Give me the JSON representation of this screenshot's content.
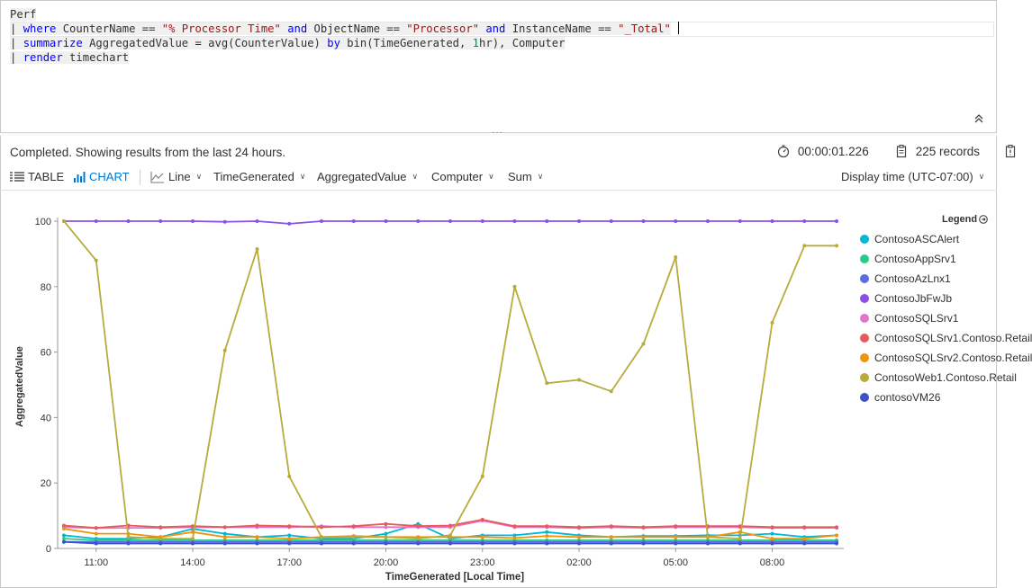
{
  "query": {
    "lines": [
      [
        {
          "t": "Perf",
          "c": "plain"
        }
      ],
      [
        {
          "t": "| ",
          "c": "plain"
        },
        {
          "t": "where",
          "c": "kw"
        },
        {
          "t": " CounterName == ",
          "c": "plain"
        },
        {
          "t": "\"% Processor Time\"",
          "c": "str"
        },
        {
          "t": " ",
          "c": "plain"
        },
        {
          "t": "and",
          "c": "kw"
        },
        {
          "t": " ObjectName == ",
          "c": "plain"
        },
        {
          "t": "\"Processor\"",
          "c": "str"
        },
        {
          "t": " ",
          "c": "plain"
        },
        {
          "t": "and",
          "c": "kw"
        },
        {
          "t": " InstanceName == ",
          "c": "plain"
        },
        {
          "t": "\"_Total\"",
          "c": "str"
        }
      ],
      [
        {
          "t": "| ",
          "c": "plain"
        },
        {
          "t": "summarize",
          "c": "kw"
        },
        {
          "t": " AggregatedValue = avg(CounterValue) ",
          "c": "plain"
        },
        {
          "t": "by",
          "c": "kw"
        },
        {
          "t": " bin(TimeGenerated, ",
          "c": "plain"
        },
        {
          "t": "1",
          "c": "num"
        },
        {
          "t": "hr), Computer",
          "c": "plain"
        }
      ],
      [
        {
          "t": "| ",
          "c": "plain"
        },
        {
          "t": "render",
          "c": "kw"
        },
        {
          "t": " timechart",
          "c": "plain"
        }
      ]
    ]
  },
  "status": {
    "message": "Completed. Showing results from the last 24 hours.",
    "duration": "00:00:01.226",
    "records": "225 records"
  },
  "toolbar": {
    "table": "TABLE",
    "chart": "CHART",
    "chart_type": "Line",
    "x_column": "TimeGenerated",
    "y_column": "AggregatedValue",
    "split_by": "Computer",
    "aggregation": "Sum",
    "display_time": "Display time (UTC-07:00)"
  },
  "legend": {
    "title": "Legend"
  },
  "chart_data": {
    "type": "line",
    "xlabel": "TimeGenerated [Local Time]",
    "ylabel": "AggregatedValue",
    "ylim": [
      0,
      100
    ],
    "yticks": [
      0,
      20,
      40,
      60,
      80,
      100
    ],
    "x": [
      "10:00",
      "11:00",
      "12:00",
      "13:00",
      "14:00",
      "15:00",
      "16:00",
      "17:00",
      "18:00",
      "19:00",
      "20:00",
      "21:00",
      "22:00",
      "23:00",
      "00:00",
      "01:00",
      "02:00",
      "03:00",
      "04:00",
      "05:00",
      "06:00",
      "07:00",
      "08:00",
      "09:00",
      "10:00"
    ],
    "xtick_labels": [
      "11:00",
      "14:00",
      "17:00",
      "20:00",
      "23:00",
      "02:00",
      "05:00",
      "08:00"
    ],
    "xtick_index": [
      1,
      4,
      7,
      10,
      13,
      16,
      19,
      22
    ],
    "series": [
      {
        "name": "ContosoASCAlert",
        "color": "#00b7d6",
        "values": [
          4,
          3,
          3,
          3.5,
          6,
          4.5,
          3.5,
          4,
          3,
          3,
          4.5,
          7.5,
          3,
          4,
          4,
          5,
          4,
          3.5,
          3.8,
          3.8,
          4,
          4,
          4.5,
          3.5,
          4
        ]
      },
      {
        "name": "ContosoAppSrv1",
        "color": "#2bcc85",
        "values": [
          3,
          2.5,
          2.5,
          2.5,
          2.5,
          2.5,
          2.5,
          2.5,
          2.5,
          2.5,
          2.5,
          2.5,
          2.5,
          2.5,
          2.5,
          2.5,
          2.5,
          2.5,
          2.5,
          2.5,
          2.5,
          2.5,
          2.5,
          2.5,
          2.5
        ]
      },
      {
        "name": "ContosoAzLnx1",
        "color": "#5b6ee1",
        "values": [
          2,
          2,
          2,
          2,
          2,
          2,
          2,
          2,
          2,
          2,
          2,
          2,
          2,
          2,
          2,
          2,
          2,
          2,
          2,
          2,
          2,
          2,
          2,
          2,
          2
        ]
      },
      {
        "name": "ContosoJbFwJb",
        "color": "#8c4fe8",
        "values": [
          100,
          100,
          100,
          100,
          100,
          99.8,
          100,
          99.2,
          100,
          100,
          100,
          100,
          100,
          100,
          100,
          100,
          100,
          100,
          100,
          100,
          100,
          100,
          100,
          100,
          100
        ]
      },
      {
        "name": "ContosoSQLSrv1",
        "color": "#e374c8",
        "values": [
          6.5,
          6.2,
          6.3,
          6.3,
          6.5,
          6.5,
          6.5,
          6.5,
          6.8,
          6.5,
          6.5,
          6.5,
          6.5,
          8.5,
          6.5,
          6.5,
          6.2,
          6.5,
          6.3,
          6.5,
          6.5,
          6.5,
          6.3,
          6.3,
          6.3
        ]
      },
      {
        "name": "ContosoSQLSrv1.Contoso.Retail",
        "color": "#e55b5b",
        "values": [
          7,
          6.3,
          7,
          6.5,
          6.8,
          6.5,
          7,
          6.8,
          6.5,
          6.8,
          7.5,
          6.8,
          7,
          8.8,
          6.8,
          6.8,
          6.5,
          6.8,
          6.5,
          6.8,
          6.8,
          6.8,
          6.5,
          6.5,
          6.5
        ]
      },
      {
        "name": "ContosoSQLSrv2.Contoso.Retail",
        "color": "#f2940a",
        "values": [
          6,
          4.5,
          4.5,
          3.5,
          5,
          3.5,
          3.5,
          3,
          3.5,
          3.8,
          3.5,
          3.5,
          3.5,
          3.5,
          3.2,
          3.8,
          3.5,
          3.5,
          3.5,
          3.5,
          3.5,
          5,
          3,
          3,
          4
        ]
      },
      {
        "name": "ContosoWeb1.Contoso.Retail",
        "color": "#b8ab3c",
        "values": [
          100,
          88,
          3.5,
          3,
          3,
          60.5,
          91.5,
          22,
          3.5,
          3.5,
          3.5,
          3,
          4,
          22,
          80,
          50.5,
          51.5,
          48,
          62.5,
          89,
          3.5,
          3,
          69,
          92.5,
          92.5
        ]
      },
      {
        "name": "contosoVM26",
        "color": "#3f51c6",
        "values": [
          2,
          1.5,
          1.5,
          1.5,
          1.5,
          1.5,
          1.5,
          1.5,
          1.5,
          1.5,
          1.5,
          1.5,
          1.5,
          1.5,
          1.5,
          1.5,
          1.5,
          1.5,
          1.5,
          1.5,
          1.5,
          1.5,
          1.5,
          1.5,
          1.5
        ]
      }
    ],
    "grid": false,
    "legend_position": "right"
  }
}
